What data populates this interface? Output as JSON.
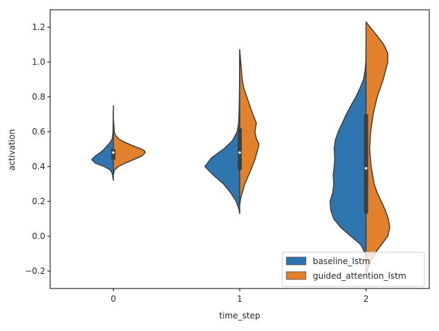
{
  "chart_data": {
    "type": "violin",
    "split": true,
    "xlabel": "time_step",
    "ylabel": "activation",
    "categories": [
      "0",
      "1",
      "2"
    ],
    "ylim": [
      -0.3,
      1.3
    ],
    "yticks": [
      -0.2,
      0.0,
      0.2,
      0.4,
      0.6,
      0.8,
      1.0,
      1.2
    ],
    "ytick_labels": [
      "−0.2",
      "0.0",
      "0.2",
      "0.4",
      "0.6",
      "0.8",
      "1.0",
      "1.2"
    ],
    "legend_position": "lower right",
    "series": [
      {
        "name": "baseline_lstm",
        "color": "#2f75b0",
        "side": "left",
        "violins": [
          {
            "category": "0",
            "median": 0.48,
            "q1": 0.44,
            "q3": 0.5,
            "profile": [
              [
                0.32,
                0
              ],
              [
                0.36,
                0.02
              ],
              [
                0.38,
                0.06
              ],
              [
                0.4,
                0.18
              ],
              [
                0.42,
                0.36
              ],
              [
                0.44,
                0.43
              ],
              [
                0.46,
                0.36
              ],
              [
                0.48,
                0.26
              ],
              [
                0.5,
                0.18
              ],
              [
                0.52,
                0.12
              ],
              [
                0.54,
                0.06
              ],
              [
                0.56,
                0.02
              ],
              [
                0.6,
                0.006
              ],
              [
                0.65,
                0.004
              ],
              [
                0.7,
                0.003
              ],
              [
                0.75,
                0
              ]
            ]
          },
          {
            "category": "1",
            "median": 0.48,
            "q1": 0.38,
            "q3": 0.62,
            "profile": [
              [
                0.13,
                0
              ],
              [
                0.16,
                0.02
              ],
              [
                0.2,
                0.07
              ],
              [
                0.25,
                0.18
              ],
              [
                0.3,
                0.32
              ],
              [
                0.35,
                0.52
              ],
              [
                0.4,
                0.69
              ],
              [
                0.45,
                0.56
              ],
              [
                0.5,
                0.32
              ],
              [
                0.55,
                0.14
              ],
              [
                0.6,
                0.05
              ],
              [
                0.65,
                0.02
              ],
              [
                0.75,
                0.01
              ],
              [
                0.85,
                0.004
              ],
              [
                1.0,
                0.002
              ],
              [
                1.07,
                0
              ]
            ]
          },
          {
            "category": "2",
            "median": 0.39,
            "q1": 0.13,
            "q3": 0.7,
            "profile": [
              [
                -0.11,
                0
              ],
              [
                -0.05,
                0.1
              ],
              [
                0.0,
                0.3
              ],
              [
                0.05,
                0.5
              ],
              [
                0.1,
                0.64
              ],
              [
                0.15,
                0.7
              ],
              [
                0.2,
                0.71
              ],
              [
                0.25,
                0.66
              ],
              [
                0.3,
                0.64
              ],
              [
                0.35,
                0.65
              ],
              [
                0.4,
                0.63
              ],
              [
                0.45,
                0.62
              ],
              [
                0.5,
                0.63
              ],
              [
                0.55,
                0.61
              ],
              [
                0.6,
                0.55
              ],
              [
                0.65,
                0.47
              ],
              [
                0.7,
                0.39
              ],
              [
                0.75,
                0.3
              ],
              [
                0.8,
                0.2
              ],
              [
                0.85,
                0.12
              ],
              [
                0.9,
                0.05
              ],
              [
                0.95,
                0.02
              ],
              [
                1.0,
                0.005
              ],
              [
                1.1,
                0
              ]
            ]
          }
        ]
      },
      {
        "name": "guided_attention_lstm",
        "color": "#e1812c",
        "side": "right",
        "violins": [
          {
            "category": "0",
            "median": 0.48,
            "q1": 0.44,
            "q3": 0.5,
            "profile": [
              [
                0.35,
                0
              ],
              [
                0.38,
                0.02
              ],
              [
                0.4,
                0.1
              ],
              [
                0.42,
                0.24
              ],
              [
                0.44,
                0.4
              ],
              [
                0.46,
                0.56
              ],
              [
                0.48,
                0.63
              ],
              [
                0.49,
                0.62
              ],
              [
                0.5,
                0.56
              ],
              [
                0.52,
                0.38
              ],
              [
                0.54,
                0.22
              ],
              [
                0.56,
                0.1
              ],
              [
                0.58,
                0.04
              ],
              [
                0.6,
                0.02
              ],
              [
                0.65,
                0.008
              ],
              [
                0.68,
                0
              ]
            ]
          },
          {
            "category": "1",
            "median": 0.48,
            "q1": 0.38,
            "q3": 0.62,
            "profile": [
              [
                0.18,
                0
              ],
              [
                0.22,
                0.02
              ],
              [
                0.3,
                0.1
              ],
              [
                0.38,
                0.22
              ],
              [
                0.44,
                0.3
              ],
              [
                0.5,
                0.36
              ],
              [
                0.53,
                0.38
              ],
              [
                0.56,
                0.33
              ],
              [
                0.6,
                0.3
              ],
              [
                0.65,
                0.33
              ],
              [
                0.7,
                0.26
              ],
              [
                0.75,
                0.2
              ],
              [
                0.8,
                0.14
              ],
              [
                0.85,
                0.08
              ],
              [
                0.9,
                0.05
              ],
              [
                1.0,
                0.02
              ],
              [
                1.07,
                0
              ]
            ]
          },
          {
            "category": "2",
            "median": 0.39,
            "q1": 0.13,
            "q3": 0.7,
            "profile": [
              [
                -0.22,
                0
              ],
              [
                -0.15,
                0.08
              ],
              [
                -0.08,
                0.22
              ],
              [
                0.0,
                0.43
              ],
              [
                0.05,
                0.47
              ],
              [
                0.1,
                0.44
              ],
              [
                0.15,
                0.38
              ],
              [
                0.2,
                0.3
              ],
              [
                0.25,
                0.22
              ],
              [
                0.3,
                0.16
              ],
              [
                0.4,
                0.1
              ],
              [
                0.5,
                0.07
              ],
              [
                0.6,
                0.09
              ],
              [
                0.7,
                0.14
              ],
              [
                0.8,
                0.22
              ],
              [
                0.9,
                0.34
              ],
              [
                1.0,
                0.43
              ],
              [
                1.05,
                0.43
              ],
              [
                1.1,
                0.35
              ],
              [
                1.15,
                0.22
              ],
              [
                1.2,
                0.08
              ],
              [
                1.23,
                0
              ]
            ]
          }
        ]
      }
    ]
  }
}
